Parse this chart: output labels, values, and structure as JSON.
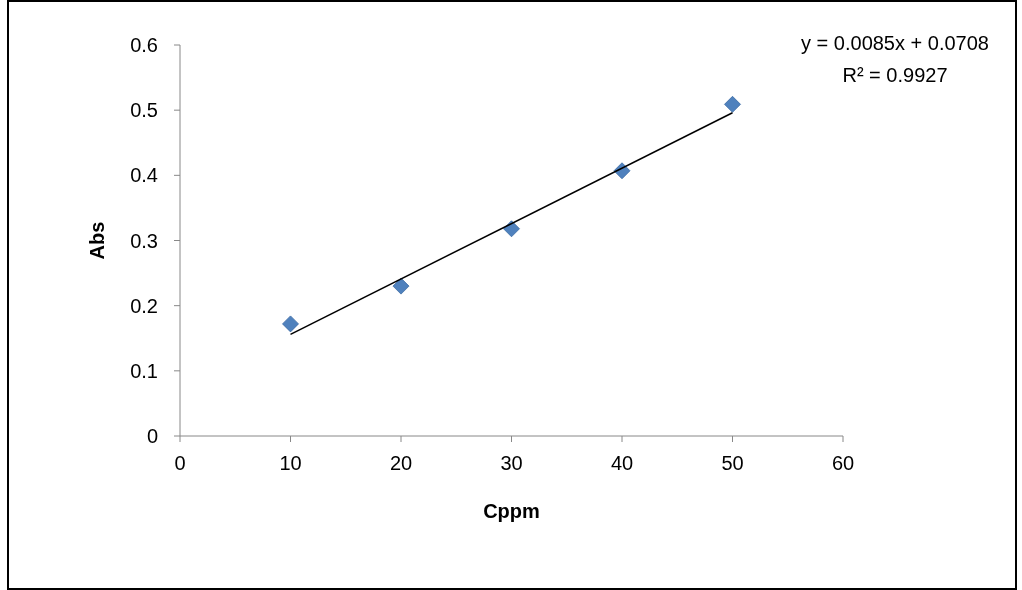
{
  "chart_data": {
    "type": "scatter",
    "xlabel": "Cppm",
    "ylabel": "Abs",
    "xlim": [
      0,
      60
    ],
    "xticks": [
      0,
      10,
      20,
      30,
      40,
      50,
      60
    ],
    "ylim": [
      0,
      0.6
    ],
    "yticks": [
      0,
      0.1,
      0.2,
      0.3,
      0.4,
      0.5,
      0.6
    ],
    "grid": false,
    "marker": "diamond",
    "x": [
      10,
      20,
      30,
      40,
      50
    ],
    "series": [
      {
        "color": "#4f81bd",
        "values": [
          0.172,
          0.23,
          0.318,
          0.407,
          0.509
        ]
      },
      {
        "type": "line",
        "color": "#000000",
        "x": [
          10,
          50
        ],
        "values": [
          0.156,
          0.496
        ],
        "marker": "none",
        "line_style": "solid"
      }
    ],
    "annotations": [
      "y = 0.0085x + 0.0708",
      "R² = 0.9927"
    ]
  }
}
